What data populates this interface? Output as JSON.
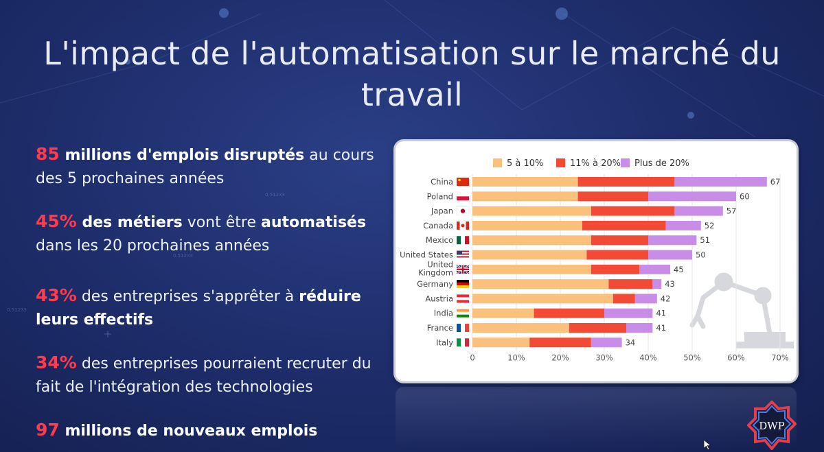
{
  "title": "L'impact de l'automatisation sur le marché du travail",
  "stats": [
    {
      "num": "85",
      "bold": " millions d'emplois disruptés",
      "rest": " au cours des 5 prochaines années"
    },
    {
      "num": "45%",
      "bold": " des métiers",
      "rest": " vont être ",
      "bold2": "automatisés",
      "rest2": "  dans les 20 prochaines années"
    },
    {
      "num": "43%",
      "rest": " des entreprises s'apprêter à ",
      "bold": "réduire leurs effectifs"
    },
    {
      "num": "34%",
      "rest": " des entreprises pourraient recruter du fait de l'intégration des technologies"
    },
    {
      "num": "97",
      "bold": " millions de nouveaux emplois"
    }
  ],
  "logo_text": "DWP",
  "colors": {
    "accent_red": "#ff3b4f",
    "s1": "#fbc17c",
    "s2": "#f24a35",
    "s3": "#c88de6"
  },
  "chart_data": {
    "type": "bar",
    "orientation": "horizontal",
    "stacked": true,
    "categories": [
      "China",
      "Poland",
      "Japan",
      "Canada",
      "Mexico",
      "United States",
      "United Kingdom",
      "Germany",
      "Austria",
      "India",
      "France",
      "Italy"
    ],
    "series": [
      {
        "name": "5 à 10%",
        "color": "#fbc17c",
        "values": [
          24,
          24,
          27,
          25,
          27,
          26,
          27,
          31,
          32,
          14,
          22,
          13
        ]
      },
      {
        "name": "11% à 20%",
        "color": "#f24a35",
        "values": [
          22,
          16,
          19,
          19,
          13,
          14,
          11,
          10,
          5,
          16,
          13,
          14
        ]
      },
      {
        "name": "Plus de 20%",
        "color": "#c88de6",
        "values": [
          21,
          20,
          11,
          8,
          11,
          10,
          7,
          2,
          5,
          11,
          6,
          7
        ]
      }
    ],
    "totals": [
      67,
      60,
      57,
      52,
      51,
      50,
      45,
      43,
      42,
      41,
      41,
      34
    ],
    "xticks": [
      "0",
      "10%",
      "20%",
      "30%",
      "40%",
      "50%",
      "60%",
      "70%"
    ],
    "xlim": [
      0,
      70
    ],
    "legend": "top"
  }
}
